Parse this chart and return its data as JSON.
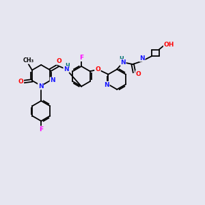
{
  "bg_color": "#e6e6f0",
  "bond_color": "#000000",
  "bond_lw": 1.3,
  "atom_colors": {
    "C": "#000000",
    "N": "#1a1aff",
    "O": "#ff0000",
    "F": "#ff00ff",
    "H": "#007070"
  },
  "font_size": 6.5,
  "small_font": 5.8
}
